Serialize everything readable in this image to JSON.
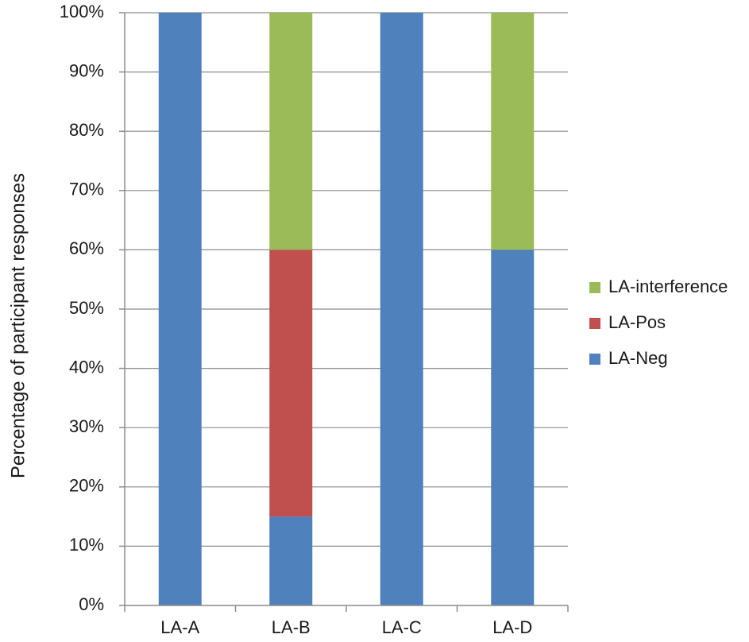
{
  "chart_data": {
    "type": "bar",
    "stacked": true,
    "title": "",
    "xlabel": "",
    "ylabel": "Percentage of participant responses",
    "ylim": [
      0,
      100
    ],
    "y_ticks": [
      "0%",
      "10%",
      "20%",
      "30%",
      "40%",
      "50%",
      "60%",
      "70%",
      "80%",
      "90%",
      "100%"
    ],
    "categories": [
      "LA-A",
      "LA-B",
      "LA-C",
      "LA-D"
    ],
    "series": [
      {
        "name": "LA-Neg",
        "color": "#4f81bd",
        "values": [
          100,
          15,
          100,
          60
        ]
      },
      {
        "name": "LA-Pos",
        "color": "#c0504d",
        "values": [
          0,
          45,
          0,
          0
        ]
      },
      {
        "name": "LA-interference",
        "color": "#9bbb59",
        "values": [
          0,
          40,
          0,
          40
        ]
      }
    ],
    "legend_order": [
      "LA-interference",
      "LA-Pos",
      "LA-Neg"
    ],
    "legend_position": "right",
    "grid": true
  }
}
